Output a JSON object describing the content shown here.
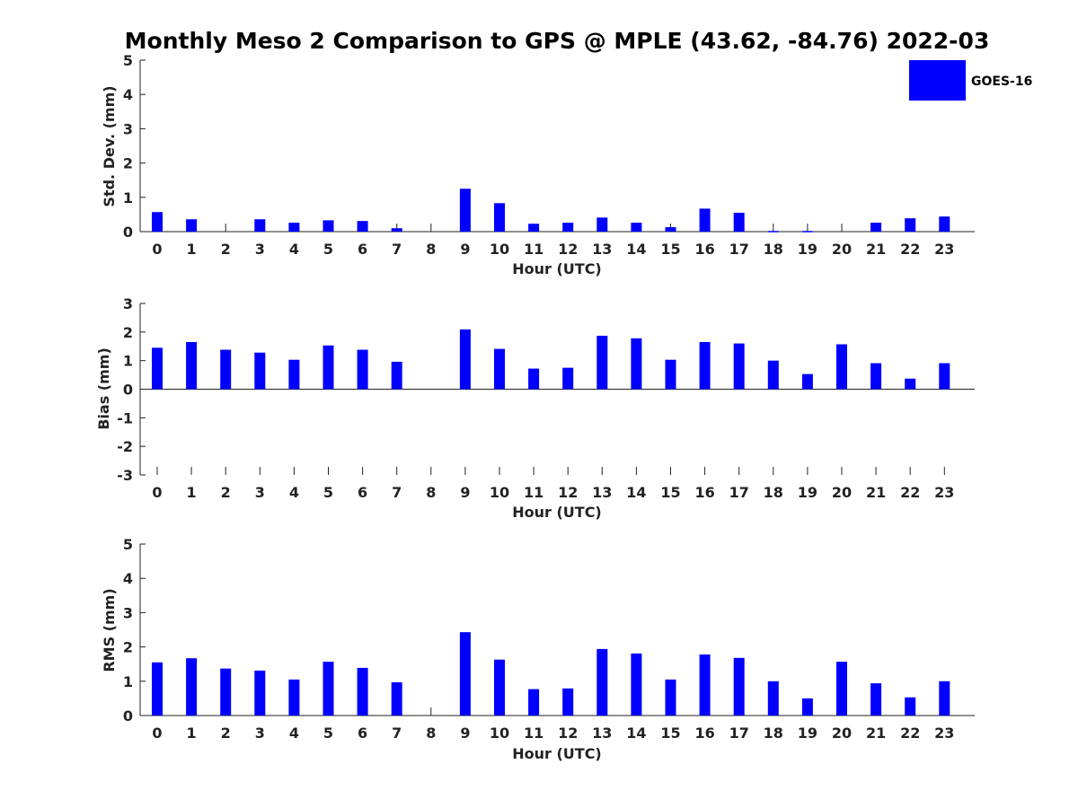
{
  "colors": {
    "bar": "#0000ff",
    "axis": "#222222"
  },
  "chart_data": {
    "type": "bar",
    "title": "Monthly Meso 2 Comparison to GPS @ MPLE (43.62, -84.76) 2022-03",
    "legend": {
      "entries": [
        "GOES-16"
      ],
      "placement": "top-right"
    },
    "panels": [
      {
        "ylabel": "Std. Dev. (mm)",
        "xlabel": "Hour (UTC)",
        "ylim": [
          0,
          5
        ],
        "yticks": [
          0,
          1,
          2,
          3,
          4,
          5
        ],
        "categories": [
          "0",
          "1",
          "2",
          "3",
          "4",
          "5",
          "6",
          "7",
          "8",
          "9",
          "10",
          "11",
          "12",
          "13",
          "14",
          "15",
          "16",
          "17",
          "18",
          "19",
          "20",
          "21",
          "22",
          "23"
        ],
        "series": [
          {
            "name": "GOES-16",
            "values": [
              0.57,
              0.36,
              null,
              0.36,
              0.26,
              0.33,
              0.31,
              0.1,
              null,
              1.25,
              0.83,
              0.23,
              0.26,
              0.41,
              0.26,
              0.13,
              0.67,
              0.55,
              0.02,
              0.02,
              null,
              0.26,
              0.39,
              0.44
            ]
          }
        ]
      },
      {
        "ylabel": "Bias (mm)",
        "xlabel": "Hour (UTC)",
        "ylim": [
          -3,
          3
        ],
        "yticks": [
          -3,
          -2,
          -1,
          0,
          1,
          2,
          3
        ],
        "categories": [
          "0",
          "1",
          "2",
          "3",
          "4",
          "5",
          "6",
          "7",
          "8",
          "9",
          "10",
          "11",
          "12",
          "13",
          "14",
          "15",
          "16",
          "17",
          "18",
          "19",
          "20",
          "21",
          "22",
          "23"
        ],
        "series": [
          {
            "name": "GOES-16",
            "values": [
              1.45,
              1.65,
              1.38,
              1.28,
              1.03,
              1.53,
              1.38,
              0.96,
              null,
              2.09,
              1.41,
              0.72,
              0.75,
              1.87,
              1.78,
              1.03,
              1.65,
              1.6,
              1.0,
              0.53,
              1.57,
              0.91,
              0.37,
              0.91
            ]
          }
        ]
      },
      {
        "ylabel": "RMS (mm)",
        "xlabel": "Hour (UTC)",
        "ylim": [
          0,
          5
        ],
        "yticks": [
          0,
          1,
          2,
          3,
          4,
          5
        ],
        "categories": [
          "0",
          "1",
          "2",
          "3",
          "4",
          "5",
          "6",
          "7",
          "8",
          "9",
          "10",
          "11",
          "12",
          "13",
          "14",
          "15",
          "16",
          "17",
          "18",
          "19",
          "20",
          "21",
          "22",
          "23"
        ],
        "series": [
          {
            "name": "GOES-16",
            "values": [
              1.55,
              1.67,
              1.37,
              1.31,
              1.05,
              1.57,
              1.39,
              0.97,
              null,
              2.43,
              1.63,
              0.77,
              0.79,
              1.94,
              1.81,
              1.05,
              1.78,
              1.68,
              1.0,
              0.5,
              1.57,
              0.94,
              0.53,
              1.0
            ]
          }
        ]
      }
    ]
  }
}
